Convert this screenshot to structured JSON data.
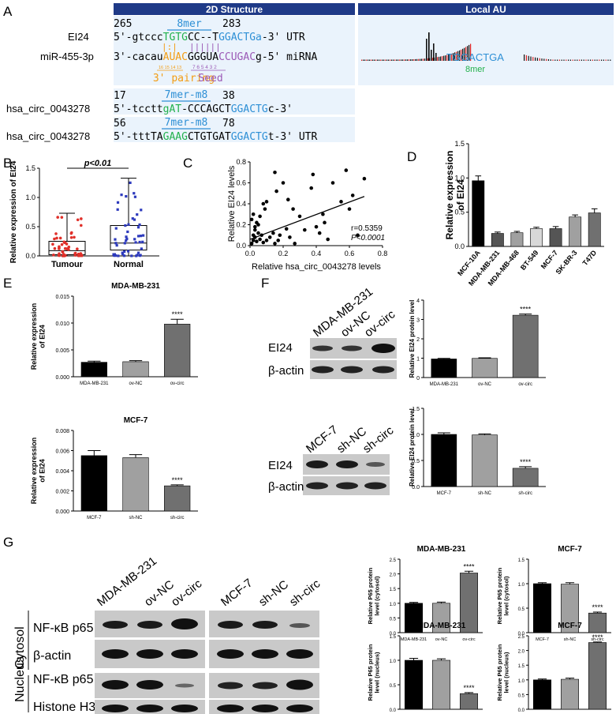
{
  "panel_letters": {
    "A": "A",
    "B": "B",
    "C": "C",
    "D": "D",
    "E": "E",
    "F": "F",
    "G": "G"
  },
  "panelA": {
    "header_2d": "2D Structure",
    "header_local": "Local AU",
    "pos_265": "265",
    "pos_283": "283",
    "site_8mer": "8mer",
    "ei24_label": "EI24",
    "ei24_seq": [
      {
        "t": "5'-gtccc",
        "c": "#000000"
      },
      {
        "t": "TGTG",
        "c": "#22b14c"
      },
      {
        "t": "CC--T",
        "c": "#000000"
      },
      {
        "t": "GGACTGa",
        "c": "#2d8fd5"
      },
      {
        "t": "-3'  UTR",
        "c": "#000000"
      }
    ],
    "pair_line_1": "|:|",
    "pair_line_2": "||||||",
    "mir_label": "miR-455-3p",
    "mir_seq": [
      {
        "t": "3'-cacau",
        "c": "#000000"
      },
      {
        "t": "AUAC",
        "c": "#f39c12"
      },
      {
        "t": "GGGUA",
        "c": "#000000"
      },
      {
        "t": "CCUGAC",
        "c": "#9b59b6"
      },
      {
        "t": "g-5'  miRNA",
        "c": "#000000"
      }
    ],
    "small_nums_orange": "16 15 14 13",
    "small_nums_purple": "7 6 5 4 3 2",
    "three_pairing": "3' pairing",
    "seed": "Seed",
    "local_seq": "TGGACTGA",
    "local_8mer": "8mer",
    "circ1": {
      "label": "hsa_circ_0043278",
      "start": "17",
      "end": "38",
      "site": "7mer-m8",
      "seq": [
        {
          "t": "5'-tcctt",
          "c": "#000000"
        },
        {
          "t": "gAT",
          "c": "#22b14c"
        },
        {
          "t": "-CCCAGCT",
          "c": "#000000"
        },
        {
          "t": "GGACTG",
          "c": "#2d8fd5"
        },
        {
          "t": "c-3'",
          "c": "#000000"
        }
      ]
    },
    "circ2": {
      "label": "hsa_circ_0043278",
      "start": "56",
      "end": "78",
      "site": "7mer-m8",
      "seq": [
        {
          "t": "5'-tttTA",
          "c": "#000000"
        },
        {
          "t": "GAAG",
          "c": "#22b14c"
        },
        {
          "t": "CTGTGAT",
          "c": "#000000"
        },
        {
          "t": "GGACTG",
          "c": "#2d8fd5"
        },
        {
          "t": "t-3'  UTR",
          "c": "#000000"
        }
      ]
    }
  },
  "chart_data": [
    {
      "id": "B",
      "type": "box",
      "ylabel": "Relative expression of EI24",
      "categories": [
        "Tumour",
        "Normal"
      ],
      "colors": [
        "#e0302a",
        "#2e3bbd"
      ],
      "ylim": [
        0,
        1.5
      ],
      "yticks": [
        "0.0",
        "0.5",
        "1.0",
        "1.5"
      ],
      "median": [
        0.09,
        0.22
      ],
      "q1": [
        0.02,
        0.1
      ],
      "q3": [
        0.25,
        0.52
      ],
      "min": [
        0.0,
        0.0
      ],
      "max": [
        0.73,
        1.33
      ],
      "significance": "p<0.01"
    },
    {
      "id": "C",
      "type": "scatter",
      "xlabel": "Relative hsa_circ_0043278 levels",
      "ylabel": "Relative EI24 levels",
      "xlim": [
        0,
        0.8
      ],
      "ylim": [
        0,
        0.8
      ],
      "xticks": [
        "0.0",
        "0.2",
        "0.4",
        "0.6",
        "0.8"
      ],
      "yticks": [
        "0.0",
        "0.2",
        "0.4",
        "0.6",
        "0.8"
      ],
      "x": [
        0.01,
        0.02,
        0.02,
        0.03,
        0.03,
        0.04,
        0.05,
        0.05,
        0.06,
        0.07,
        0.08,
        0.1,
        0.12,
        0.14,
        0.15,
        0.01,
        0.02,
        0.03,
        0.04,
        0.06,
        0.08,
        0.09,
        0.1,
        0.16,
        0.18,
        0.2,
        0.22,
        0.24,
        0.26,
        0.27,
        0.3,
        0.33,
        0.37,
        0.38,
        0.4,
        0.42,
        0.44,
        0.47,
        0.5,
        0.55,
        0.58,
        0.6,
        0.62,
        0.65,
        0.69,
        0.15,
        0.17,
        0.23,
        0.45
      ],
      "y": [
        0.02,
        0.05,
        0.1,
        0.08,
        0.15,
        0.04,
        0.12,
        0.2,
        0.06,
        0.1,
        0.03,
        0.05,
        0.08,
        0.12,
        0.02,
        0.25,
        0.3,
        0.18,
        0.22,
        0.28,
        0.4,
        0.35,
        0.42,
        0.52,
        0.1,
        0.6,
        0.16,
        0.08,
        0.35,
        0.02,
        0.28,
        0.15,
        0.55,
        0.68,
        0.18,
        0.12,
        0.3,
        0.06,
        0.6,
        0.42,
        0.72,
        0.35,
        0.48,
        0.1,
        0.64,
        0.7,
        0.05,
        0.44,
        0.22
      ],
      "fit": [
        [
          0,
          0.06
        ],
        [
          0.69,
          0.47
        ]
      ],
      "annotation_r": "r=0.5359",
      "annotation_p": "P<0.0001"
    },
    {
      "id": "D",
      "type": "bar",
      "ylabel": "Relative expression of EI24",
      "categories": [
        "MCF-10A",
        "MDA-MB-231",
        "MDA-MB-468",
        "BT-549",
        "MCF-7",
        "SK-BR-3",
        "T47D"
      ],
      "values": [
        0.96,
        0.19,
        0.2,
        0.26,
        0.26,
        0.43,
        0.49
      ],
      "errors": [
        0.07,
        0.02,
        0.02,
        0.02,
        0.03,
        0.03,
        0.06
      ],
      "colors": [
        "#000000",
        "#555555",
        "#a0a0a0",
        "#d8d8d8",
        "#555555",
        "#a0a0a0",
        "#707070"
      ],
      "ylim": [
        0,
        1.5
      ],
      "yticks": [
        "0.0",
        "0.5",
        "1.0",
        "1.5"
      ]
    },
    {
      "id": "E1",
      "type": "bar",
      "title": "MDA-MB-231",
      "ylabel": "Relative expression of EI24",
      "categories": [
        "MDA-MB-231",
        "ov-NC",
        "ov-circ"
      ],
      "values": [
        0.0027,
        0.0028,
        0.0098
      ],
      "errors": [
        0.0002,
        0.0002,
        0.0009
      ],
      "colors": [
        "#000000",
        "#a0a0a0",
        "#707070"
      ],
      "ylim": [
        0,
        0.015
      ],
      "yticks": [
        "0.000",
        "0.005",
        "0.010",
        "0.015"
      ],
      "significance": [
        "",
        "",
        "****"
      ]
    },
    {
      "id": "E2",
      "type": "bar",
      "title": "MCF-7",
      "ylabel": "Relative expression of EI24",
      "categories": [
        "MCF-7",
        "sh-NC",
        "sh-circ"
      ],
      "values": [
        0.0055,
        0.0053,
        0.0025
      ],
      "errors": [
        0.0005,
        0.0003,
        0.0001
      ],
      "colors": [
        "#000000",
        "#a0a0a0",
        "#707070"
      ],
      "ylim": [
        0,
        0.008
      ],
      "yticks": [
        "0.000",
        "0.002",
        "0.004",
        "0.006",
        "0.008"
      ],
      "significance": [
        "",
        "",
        "****"
      ]
    },
    {
      "id": "F1",
      "type": "bar",
      "ylabel": "Relative EI24 protein level",
      "categories": [
        "MDA-MB-231",
        "ov-NC",
        "ov-circ"
      ],
      "values": [
        0.96,
        0.99,
        3.22
      ],
      "errors": [
        0.03,
        0.03,
        0.06
      ],
      "colors": [
        "#000000",
        "#a0a0a0",
        "#707070"
      ],
      "ylim": [
        0,
        4
      ],
      "yticks": [
        "0",
        "1",
        "2",
        "3",
        "4"
      ],
      "significance": [
        "",
        "",
        "****"
      ]
    },
    {
      "id": "F2",
      "type": "bar",
      "ylabel": "Relative EI24 protein level",
      "categories": [
        "MCF-7",
        "sh-NC",
        "sh-circ"
      ],
      "values": [
        1.0,
        0.99,
        0.35
      ],
      "errors": [
        0.03,
        0.02,
        0.03
      ],
      "colors": [
        "#000000",
        "#a0a0a0",
        "#707070"
      ],
      "ylim": [
        0,
        1.5
      ],
      "yticks": [
        "0.0",
        "0.5",
        "1.0",
        "1.5"
      ],
      "significance": [
        "",
        "",
        "****"
      ]
    },
    {
      "id": "G1",
      "type": "bar",
      "title": "MDA-MB-231",
      "ylabel": "Relative P65 protein level (cytosol)",
      "categories": [
        "MDA-MB-231",
        "ov-NC",
        "ov-circ"
      ],
      "values": [
        1.0,
        1.0,
        2.03
      ],
      "errors": [
        0.03,
        0.04,
        0.06
      ],
      "colors": [
        "#000000",
        "#a0a0a0",
        "#707070"
      ],
      "ylim": [
        0,
        2.5
      ],
      "yticks": [
        "0.0",
        "0.5",
        "1.0",
        "1.5",
        "2.0",
        "2.5"
      ],
      "significance": [
        "",
        "",
        "****"
      ]
    },
    {
      "id": "G2",
      "type": "bar",
      "title": "MCF-7",
      "ylabel": "Relative P65 protein level (cytosol)",
      "categories": [
        "MCF-7",
        "sh-NC",
        "sh-circ"
      ],
      "values": [
        1.0,
        0.99,
        0.4
      ],
      "errors": [
        0.02,
        0.03,
        0.02
      ],
      "colors": [
        "#000000",
        "#a0a0a0",
        "#707070"
      ],
      "ylim": [
        0,
        1.5
      ],
      "yticks": [
        "0.0",
        "0.5",
        "1.0",
        "1.5"
      ],
      "significance": [
        "",
        "",
        "****"
      ]
    },
    {
      "id": "G3",
      "type": "bar",
      "title": "MDA-MB-231",
      "ylabel": "Relative P65 protein level (nucleus)",
      "categories": [
        "MDA-MB-231",
        "ov-NC",
        "ov-circ"
      ],
      "values": [
        1.0,
        1.0,
        0.32
      ],
      "errors": [
        0.04,
        0.03,
        0.02
      ],
      "colors": [
        "#000000",
        "#a0a0a0",
        "#707070"
      ],
      "ylim": [
        0,
        1.5
      ],
      "yticks": [
        "0.0",
        "0.5",
        "1.0",
        "1.5"
      ],
      "significance": [
        "",
        "",
        "****"
      ]
    },
    {
      "id": "G4",
      "type": "bar",
      "title": "MCF-7",
      "ylabel": "Relative P65 protein level (nucleus)",
      "categories": [
        "MCF-7",
        "sh-NC",
        "sh-circ"
      ],
      "values": [
        1.0,
        1.02,
        2.27
      ],
      "errors": [
        0.03,
        0.04,
        0.02
      ],
      "colors": [
        "#000000",
        "#a0a0a0",
        "#707070"
      ],
      "ylim": [
        0,
        2.5
      ],
      "yticks": [
        "0.0",
        "0.5",
        "1.0",
        "1.5",
        "2.0",
        "2.5"
      ],
      "significance": [
        "",
        "",
        "****"
      ]
    }
  ],
  "blotF1": {
    "lanes": [
      "MDA-MB-231",
      "ov-NC",
      "ov-circ"
    ],
    "rows": [
      "EI24",
      "β-actin"
    ]
  },
  "blotF2": {
    "lanes": [
      "MCF-7",
      "sh-NC",
      "sh-circ"
    ],
    "rows": [
      "EI24",
      "β-actin"
    ]
  },
  "blotG": {
    "lanes_left": [
      "MDA-MB-231",
      "ov-NC",
      "ov-circ"
    ],
    "lanes_right": [
      "MCF-7",
      "sh-NC",
      "sh-circ"
    ],
    "group_cytosol": "Cytosol",
    "group_nucleus": "Nucleus",
    "rows": [
      "NF-κB p65",
      "β-actin",
      "NF-κB p65",
      "Histone H3"
    ]
  }
}
